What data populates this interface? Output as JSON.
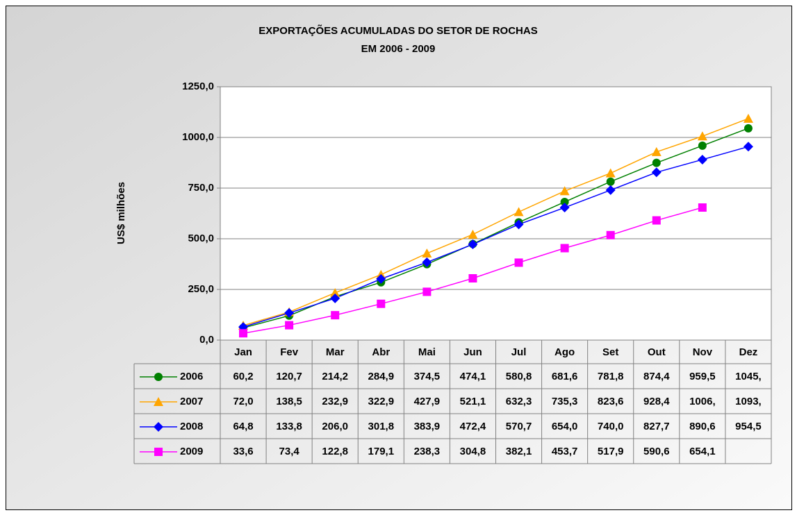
{
  "chart_data": {
    "type": "line",
    "title": "EXPORTAÇÕES ACUMULADAS DO SETOR DE ROCHAS",
    "subtitle": "EM 2006 - 2009",
    "y_label": "US$ milhões",
    "categories": [
      "Jan",
      "Fev",
      "Mar",
      "Abr",
      "Mai",
      "Jun",
      "Jul",
      "Ago",
      "Set",
      "Out",
      "Nov",
      "Dez"
    ],
    "ylim": [
      0,
      1250
    ],
    "yticks": [
      {
        "value": 0,
        "label": "0,0"
      },
      {
        "value": 250,
        "label": "250,0"
      },
      {
        "value": 500,
        "label": "500,0"
      },
      {
        "value": 750,
        "label": "750,0"
      },
      {
        "value": 1000,
        "label": "1000,0"
      },
      {
        "value": 1250,
        "label": "1250,0"
      }
    ],
    "grid": true,
    "data_table": true,
    "series": [
      {
        "name": "2006",
        "color": "#008000",
        "marker": "circle",
        "values": [
          60.2,
          120.7,
          214.2,
          284.9,
          374.5,
          474.1,
          580.8,
          681.6,
          781.8,
          874.4,
          959.5,
          1045
        ],
        "value_labels": [
          "60,2",
          "120,7",
          "214,2",
          "284,9",
          "374,5",
          "474,1",
          "580,8",
          "681,6",
          "781,8",
          "874,4",
          "959,5",
          "1045,"
        ]
      },
      {
        "name": "2007",
        "color": "#ffa500",
        "marker": "triangle",
        "values": [
          72.0,
          138.5,
          232.9,
          322.9,
          427.9,
          521.1,
          632.3,
          735.3,
          823.6,
          928.4,
          1006,
          1093
        ],
        "value_labels": [
          "72,0",
          "138,5",
          "232,9",
          "322,9",
          "427,9",
          "521,1",
          "632,3",
          "735,3",
          "823,6",
          "928,4",
          "1006,",
          "1093,"
        ]
      },
      {
        "name": "2008",
        "color": "#0000ff",
        "marker": "diamond",
        "values": [
          64.8,
          133.8,
          206.0,
          301.8,
          383.9,
          472.4,
          570.7,
          654.0,
          740.0,
          827.7,
          890.6,
          954.5
        ],
        "value_labels": [
          "64,8",
          "133,8",
          "206,0",
          "301,8",
          "383,9",
          "472,4",
          "570,7",
          "654,0",
          "740,0",
          "827,7",
          "890,6",
          "954,5"
        ]
      },
      {
        "name": "2009",
        "color": "#ff00ff",
        "marker": "square",
        "values": [
          33.6,
          73.4,
          122.8,
          179.1,
          238.3,
          304.8,
          382.1,
          453.7,
          517.9,
          590.6,
          654.1,
          null
        ],
        "value_labels": [
          "33,6",
          "73,4",
          "122,8",
          "179,1",
          "238,3",
          "304,8",
          "382,1",
          "453,7",
          "517,9",
          "590,6",
          "654,1",
          null
        ]
      }
    ]
  }
}
